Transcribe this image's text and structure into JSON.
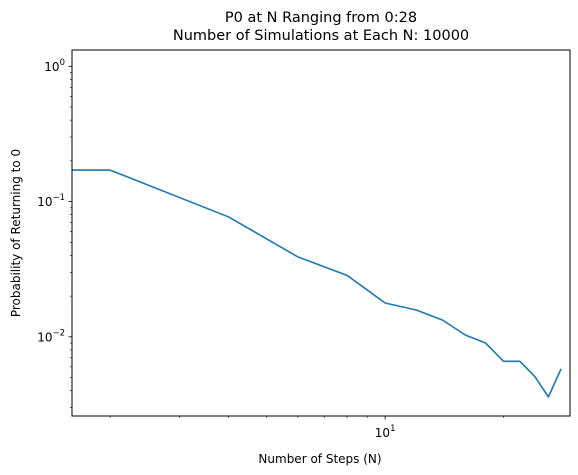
{
  "chart_data": {
    "type": "line",
    "title": "P0 at N Ranging from 0:28\nNumber of Simulations at Each N: 10000",
    "title_lines": [
      "P0 at N Ranging from 0:28",
      "Number of Simulations at Each N: 10000"
    ],
    "xlabel": "Number of Steps (N)",
    "ylabel": "Probability of Returning to 0",
    "xscale": "log",
    "yscale": "log",
    "xlim": [
      1.6,
      29.5
    ],
    "ylim": [
      0.0026,
      1.32
    ],
    "grid": false,
    "x_ticks": [
      {
        "value": 10,
        "base": "10",
        "exp": "1"
      }
    ],
    "y_ticks": [
      {
        "value": 1,
        "base": "10",
        "exp": "0"
      },
      {
        "value": 0.1,
        "base": "10",
        "exp": "−1"
      },
      {
        "value": 0.01,
        "base": "10",
        "exp": "−2"
      }
    ],
    "series": [
      {
        "color": "#1f77b4",
        "x": [
          1.6,
          2,
          4,
          6,
          8,
          10,
          12,
          14,
          16,
          18,
          20,
          22,
          24,
          26,
          28
        ],
        "y": [
          0.171,
          0.171,
          0.077,
          0.039,
          0.0285,
          0.0178,
          0.0158,
          0.0133,
          0.0103,
          0.009,
          0.0066,
          0.0066,
          0.0051,
          0.0036,
          0.0058
        ]
      }
    ]
  }
}
